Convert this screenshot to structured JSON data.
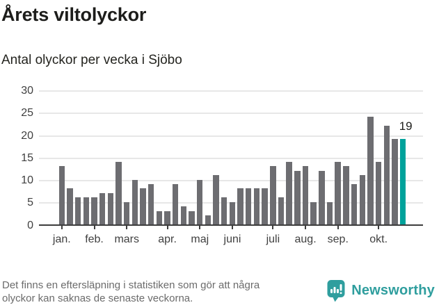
{
  "page": {
    "title": "Årets viltolyckor",
    "subtitle": "Antal olyckor per vecka i Sjöbo",
    "footer_line1": "Det finns en eftersläpning i statistiken som gör att några",
    "footer_line2": "olyckor kan saknas de senaste veckorna.",
    "brand_name": "Newsworthy"
  },
  "colors": {
    "bar": "#6d6d71",
    "accent": "#00a29b",
    "logo_teal": "#2f9e9e",
    "grid": "#e7e7e7",
    "axis": "#3d3d3d",
    "tick_text": "#3f3f3f",
    "title_text": "#1d1d1b",
    "footer_text": "#6b6b6b"
  },
  "chart_data": {
    "type": "bar",
    "title": "Årets viltolyckor",
    "subtitle": "Antal olyckor per vecka i Sjöbo",
    "unit": "olyckor per vecka",
    "values": [
      13,
      8,
      6,
      6,
      6,
      7,
      7,
      14,
      5,
      10,
      8,
      9,
      3,
      3,
      9,
      4,
      3,
      10,
      2,
      11,
      6,
      5,
      8,
      8,
      8,
      8,
      13,
      6,
      14,
      12,
      13,
      5,
      12,
      5,
      14,
      13,
      9,
      11,
      24,
      14,
      22,
      19,
      19
    ],
    "highlight_index": 42,
    "highlight_label": "19",
    "ylim": [
      0,
      30
    ],
    "yticks": [
      0,
      5,
      10,
      15,
      20,
      25,
      30
    ],
    "grid": true,
    "legend": "none",
    "month_ticks": [
      {
        "label": "jan.",
        "bar_index": 0
      },
      {
        "label": "feb.",
        "bar_index": 4
      },
      {
        "label": "mars",
        "bar_index": 8
      },
      {
        "label": "apr.",
        "bar_index": 13
      },
      {
        "label": "maj",
        "bar_index": 17
      },
      {
        "label": "juni",
        "bar_index": 21
      },
      {
        "label": "juli",
        "bar_index": 26
      },
      {
        "label": "aug.",
        "bar_index": 30
      },
      {
        "label": "sep.",
        "bar_index": 34
      },
      {
        "label": "okt.",
        "bar_index": 39
      }
    ]
  }
}
